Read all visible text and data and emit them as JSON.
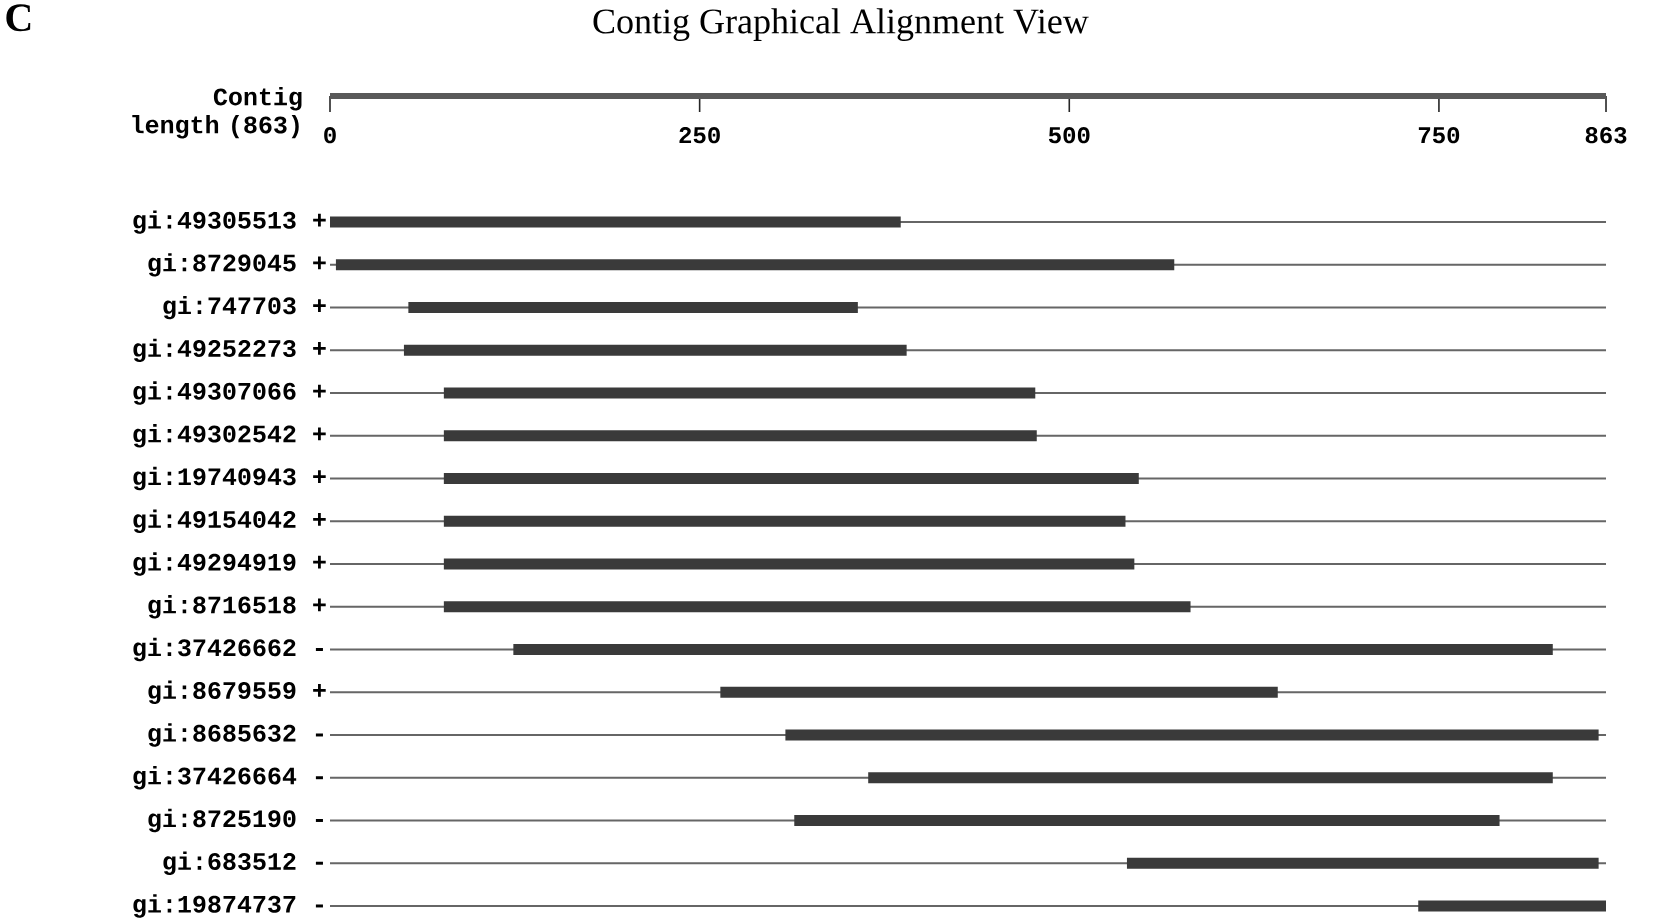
{
  "chart_data": {
    "type": "bar",
    "orientation": "horizontal",
    "title": "Contig Graphical Alignment View",
    "xlabel": "Contig length (863)",
    "annotations": [
      "C"
    ],
    "categories": [
      "gi:49305513 +",
      "gi:8729045 +",
      "gi:747703 +",
      "gi:49252273 +",
      "gi:49307066 +",
      "gi:49302542 +",
      "gi:19740943 +",
      "gi:49154042 +",
      "gi:49294919 +",
      "gi:8716518 +",
      "gi:37426662 -",
      "gi:8679559 +",
      "gi:8685632 -",
      "gi:37426664 -",
      "gi:8725190 -",
      "gi:683512 -",
      "gi:19874737 -"
    ],
    "base": [
      0,
      4,
      53,
      50,
      77,
      77,
      77,
      77,
      77,
      77,
      124,
      264,
      308,
      364,
      314,
      539,
      736
    ],
    "values": [
      386,
      567,
      304,
      340,
      400,
      401,
      470,
      461,
      467,
      505,
      703,
      377,
      550,
      463,
      477,
      319,
      127
    ],
    "color": "#3a3a3a",
    "grid": "y",
    "xlim": [
      0,
      863
    ],
    "xticks": [
      0,
      250,
      500,
      750,
      863
    ]
  }
}
